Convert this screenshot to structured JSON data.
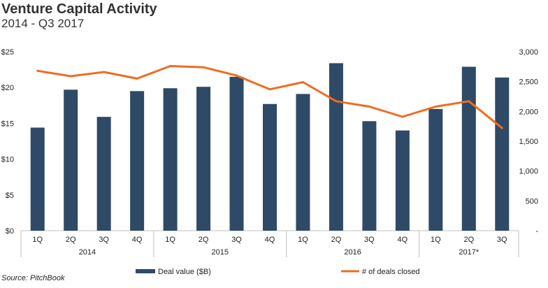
{
  "title": "Venture Capital Activity",
  "subtitle": "2014 - Q3 2017",
  "source": "Source: PitchBook",
  "colors": {
    "bar": "#2e4a66",
    "line": "#ef6c1f",
    "grid": "#d9d9d9",
    "axis": "#bfbfbf"
  },
  "chart_data": {
    "type": "bar",
    "categories": [
      "1Q",
      "2Q",
      "3Q",
      "4Q",
      "1Q",
      "2Q",
      "3Q",
      "4Q",
      "1Q",
      "2Q",
      "3Q",
      "4Q",
      "1Q",
      "2Q",
      "3Q"
    ],
    "groups": [
      {
        "label": "2014",
        "count": 4
      },
      {
        "label": "2015",
        "count": 4
      },
      {
        "label": "2016",
        "count": 4
      },
      {
        "label": "2017*",
        "count": 3
      }
    ],
    "series": [
      {
        "name": "Deal value ($B)",
        "type": "bar",
        "axis": "left",
        "values": [
          14.4,
          19.7,
          15.9,
          19.5,
          19.9,
          20.1,
          21.5,
          17.7,
          19.1,
          23.4,
          15.3,
          14.0,
          17.0,
          22.9,
          21.4
        ]
      },
      {
        "name": "# of deals closed",
        "type": "line",
        "axis": "right",
        "values": [
          2680,
          2590,
          2660,
          2550,
          2760,
          2740,
          2600,
          2370,
          2490,
          2170,
          2080,
          1910,
          2080,
          2170,
          1720
        ]
      }
    ],
    "left_axis": {
      "ticks": [
        "$0",
        "$5",
        "$10",
        "$15",
        "$20",
        "$25"
      ],
      "ylim": [
        0,
        25
      ]
    },
    "right_axis": {
      "ticks": [
        "-",
        "500",
        "1,000",
        "1,500",
        "2,000",
        "2,500",
        "3,000"
      ],
      "ylim": [
        0,
        3000
      ]
    },
    "grid": false,
    "legend": "bottom"
  }
}
